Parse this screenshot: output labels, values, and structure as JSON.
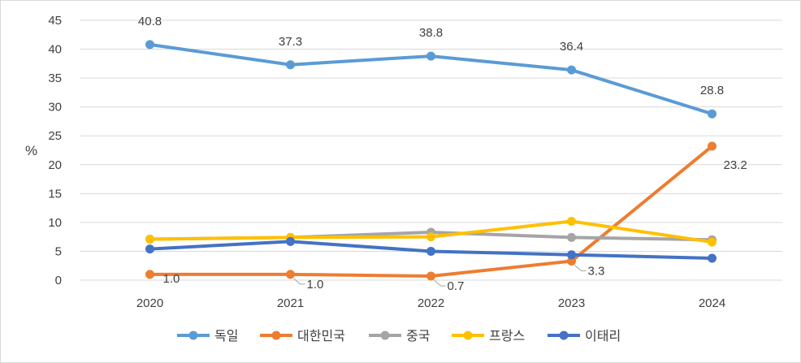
{
  "chart_data": {
    "type": "line",
    "title": "",
    "xlabel": "",
    "ylabel": "%",
    "ylim": [
      0,
      45
    ],
    "yticks": [
      0,
      5,
      10,
      15,
      20,
      25,
      30,
      35,
      40,
      45
    ],
    "x": [
      "2020",
      "2021",
      "2022",
      "2023",
      "2024"
    ],
    "grid": true,
    "legend_position": "bottom",
    "series": [
      {
        "name": "독일",
        "color": "#5B9BD5",
        "values": [
          40.8,
          37.3,
          38.8,
          36.4,
          28.8
        ],
        "labels": [
          "40.8",
          "37.3",
          "38.8",
          "36.4",
          "28.8"
        ]
      },
      {
        "name": "대한민국",
        "color": "#ED7D31",
        "values": [
          1.0,
          1.0,
          0.7,
          3.3,
          23.2
        ],
        "labels": [
          "1.0",
          "1.0",
          "0.7",
          "3.3",
          "23.2"
        ]
      },
      {
        "name": "중국",
        "color": "#A5A5A5",
        "values": [
          7.1,
          7.4,
          8.3,
          7.4,
          7.0
        ]
      },
      {
        "name": "프랑스",
        "color": "#FFC000",
        "values": [
          7.1,
          7.4,
          7.5,
          10.2,
          6.6
        ]
      },
      {
        "name": "이태리",
        "color": "#4472C4",
        "values": [
          5.4,
          6.7,
          5.0,
          4.4,
          3.8
        ]
      }
    ]
  }
}
